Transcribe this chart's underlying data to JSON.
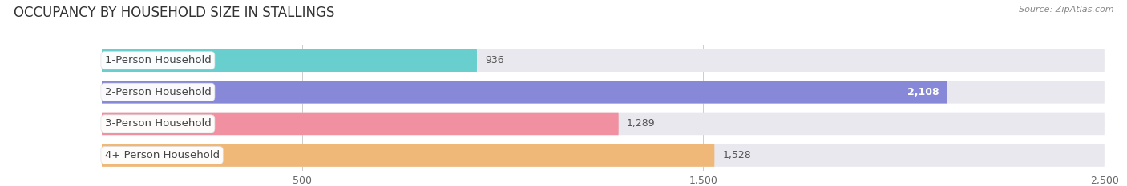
{
  "title": "OCCUPANCY BY HOUSEHOLD SIZE IN STALLINGS",
  "source": "Source: ZipAtlas.com",
  "categories": [
    "1-Person Household",
    "2-Person Household",
    "3-Person Household",
    "4+ Person Household"
  ],
  "values": [
    936,
    2108,
    1289,
    1528
  ],
  "bar_colors": [
    "#68cece",
    "#8888d8",
    "#f090a0",
    "#f0b878"
  ],
  "xlim_max": 2500,
  "xticks": [
    500,
    1500,
    2500
  ],
  "background_color": "#ffffff",
  "bar_bg_color": "#e8e8ee",
  "title_fontsize": 12,
  "source_fontsize": 8,
  "label_fontsize": 9.5,
  "value_fontsize": 9
}
